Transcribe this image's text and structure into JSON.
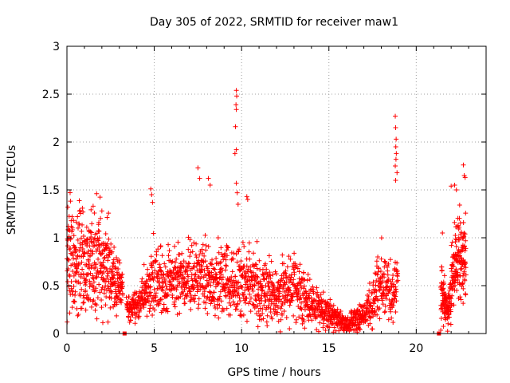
{
  "chart_data": {
    "type": "scatter",
    "title": "Day 305 of 2022, SRMTID for receiver maw1",
    "xlabel": "GPS time / hours",
    "ylabel": "SRMTID / TECUs",
    "xlim": [
      0,
      24
    ],
    "ylim": [
      0,
      3
    ],
    "x_ticks": [
      0,
      5,
      10,
      15,
      20
    ],
    "x_tick_labels": [
      "0",
      "5",
      "10",
      "15",
      "20"
    ],
    "y_ticks": [
      0,
      0.5,
      1,
      1.5,
      2,
      2.5,
      3
    ],
    "y_tick_labels": [
      "0",
      "0.5",
      "1",
      "1.5",
      "2",
      "2.5",
      "3"
    ],
    "grid": true,
    "marker": "+",
    "color": "#ff0000",
    "envelope": [
      [
        0.0,
        0.8,
        0.3
      ],
      [
        0.5,
        0.75,
        0.28
      ],
      [
        1.0,
        0.7,
        0.28
      ],
      [
        1.5,
        0.72,
        0.28
      ],
      [
        2.0,
        0.7,
        0.25
      ],
      [
        2.5,
        0.65,
        0.22
      ],
      [
        3.0,
        0.5,
        0.15
      ],
      [
        3.2,
        0.5,
        0.1
      ],
      [
        3.5,
        0.25,
        0.06
      ],
      [
        4.0,
        0.3,
        0.08
      ],
      [
        4.5,
        0.45,
        0.12
      ],
      [
        5.0,
        0.55,
        0.18
      ],
      [
        6.0,
        0.55,
        0.16
      ],
      [
        7.0,
        0.58,
        0.18
      ],
      [
        8.0,
        0.55,
        0.18
      ],
      [
        9.0,
        0.52,
        0.18
      ],
      [
        10.0,
        0.55,
        0.2
      ],
      [
        11.0,
        0.48,
        0.18
      ],
      [
        12.0,
        0.4,
        0.14
      ],
      [
        13.0,
        0.5,
        0.16
      ],
      [
        14.0,
        0.3,
        0.12
      ],
      [
        15.0,
        0.22,
        0.08
      ],
      [
        16.0,
        0.08,
        0.04
      ],
      [
        17.0,
        0.18,
        0.08
      ],
      [
        17.5,
        0.35,
        0.12
      ],
      [
        18.0,
        0.55,
        0.2
      ],
      [
        18.5,
        0.45,
        0.18
      ],
      [
        18.9,
        0.55,
        0.2
      ]
    ],
    "segment2_envelope": [
      [
        21.4,
        0.5,
        0.18
      ],
      [
        21.8,
        0.2,
        0.08
      ],
      [
        22.2,
        0.75,
        0.22
      ],
      [
        22.5,
        0.8,
        0.22
      ],
      [
        22.8,
        0.75,
        0.22
      ]
    ],
    "notable_points": [
      [
        0.05,
        1.32
      ],
      [
        0.3,
        1.22
      ],
      [
        1.5,
        1.33
      ],
      [
        1.7,
        1.46
      ],
      [
        2.0,
        1.28
      ],
      [
        4.8,
        1.51
      ],
      [
        4.85,
        1.45
      ],
      [
        4.9,
        1.37
      ],
      [
        7.5,
        1.73
      ],
      [
        7.6,
        1.62
      ],
      [
        8.1,
        1.62
      ],
      [
        8.2,
        1.55
      ],
      [
        9.7,
        2.54
      ],
      [
        9.72,
        2.48
      ],
      [
        9.68,
        2.39
      ],
      [
        9.7,
        2.34
      ],
      [
        9.65,
        2.16
      ],
      [
        9.7,
        1.92
      ],
      [
        9.62,
        1.88
      ],
      [
        9.7,
        1.57
      ],
      [
        9.75,
        1.47
      ],
      [
        9.8,
        1.35
      ],
      [
        10.3,
        1.43
      ],
      [
        10.35,
        1.4
      ],
      [
        18.8,
        2.27
      ],
      [
        18.82,
        2.15
      ],
      [
        18.85,
        2.03
      ],
      [
        18.83,
        1.95
      ],
      [
        18.86,
        1.88
      ],
      [
        18.84,
        1.82
      ],
      [
        18.8,
        1.75
      ],
      [
        18.9,
        1.68
      ],
      [
        18.82,
        1.6
      ],
      [
        21.5,
        1.05
      ],
      [
        22.0,
        1.54
      ],
      [
        22.2,
        1.55
      ],
      [
        22.3,
        1.5
      ],
      [
        22.7,
        1.76
      ],
      [
        22.75,
        1.65
      ],
      [
        22.8,
        1.63
      ]
    ],
    "missing_data_markers": [
      3.3,
      21.3
    ]
  }
}
